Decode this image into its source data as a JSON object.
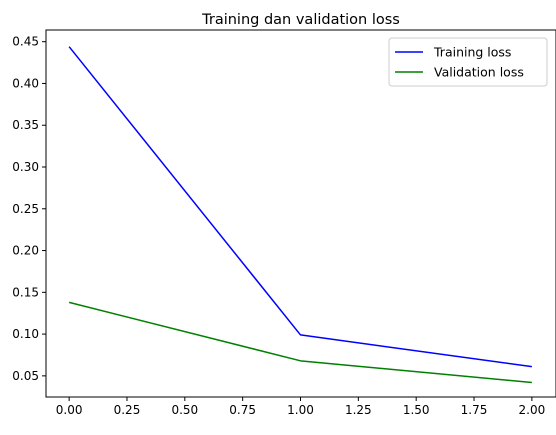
{
  "chart_data": {
    "type": "line",
    "title": "Training dan validation loss",
    "xlabel": "",
    "ylabel": "",
    "x": [
      0,
      1,
      2
    ],
    "xlim": [
      -0.1,
      2.1
    ],
    "ylim": [
      0.0247,
      0.464
    ],
    "xticks": [
      0.0,
      0.25,
      0.5,
      0.75,
      1.0,
      1.25,
      1.5,
      1.75,
      2.0
    ],
    "xtick_labels": [
      "0.00",
      "0.25",
      "0.50",
      "0.75",
      "1.00",
      "1.25",
      "1.50",
      "1.75",
      "2.00"
    ],
    "yticks": [
      0.05,
      0.1,
      0.15,
      0.2,
      0.25,
      0.3,
      0.35,
      0.4,
      0.45
    ],
    "ytick_labels": [
      "0.05",
      "0.10",
      "0.15",
      "0.20",
      "0.25",
      "0.30",
      "0.35",
      "0.40",
      "0.45"
    ],
    "grid": false,
    "legend_position": "top-right",
    "series": [
      {
        "name": "Training loss",
        "color": "#0000ff",
        "values": [
          0.444,
          0.099,
          0.061
        ]
      },
      {
        "name": "Validation loss",
        "color": "#008000",
        "values": [
          0.138,
          0.068,
          0.042
        ]
      }
    ]
  }
}
